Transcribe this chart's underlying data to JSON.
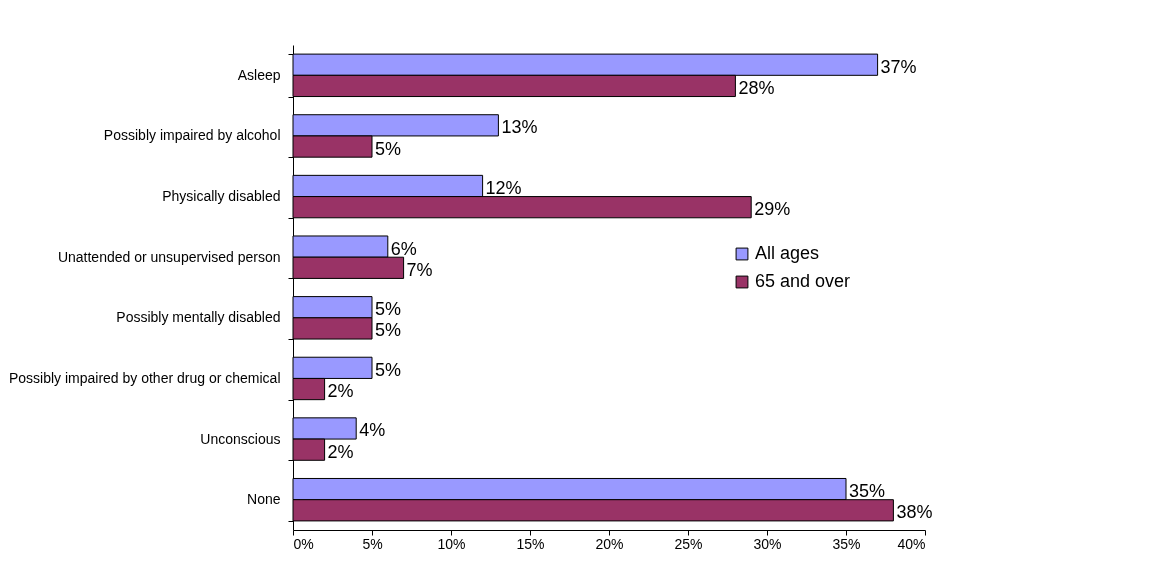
{
  "chart_data": {
    "type": "bar",
    "orientation": "horizontal",
    "categories": [
      "Asleep",
      "Possibly impaired by alcohol",
      "Physically disabled",
      "Unattended or unsupervised person",
      "Possibly mentally disabled",
      "Possibly impaired by other drug or chemical",
      "Unconscious",
      "None"
    ],
    "series": [
      {
        "name": "All ages",
        "color": "#9999ff",
        "values": [
          37,
          13,
          12,
          6,
          5,
          5,
          4,
          35
        ],
        "value_labels": [
          "37%",
          "13%",
          "12%",
          "6%",
          "5%",
          "5%",
          "4%",
          "35%"
        ]
      },
      {
        "name": "65 and over",
        "color": "#993366",
        "values": [
          28,
          5,
          29,
          7,
          5,
          2,
          2,
          38
        ],
        "value_labels": [
          "28%",
          "5%",
          "29%",
          "7%",
          "5%",
          "2%",
          "2%",
          "38%"
        ]
      }
    ],
    "xlim": [
      0,
      40
    ],
    "xticks": [
      {
        "value": 0,
        "label": "0%"
      },
      {
        "value": 5,
        "label": "5%"
      },
      {
        "value": 10,
        "label": "10%"
      },
      {
        "value": 15,
        "label": "15%"
      },
      {
        "value": 20,
        "label": "20%"
      },
      {
        "value": 25,
        "label": "25%"
      },
      {
        "value": 30,
        "label": "30%"
      },
      {
        "value": 35,
        "label": "35%"
      },
      {
        "value": 40,
        "label": "40%"
      }
    ],
    "grid": false,
    "legend": "right"
  }
}
